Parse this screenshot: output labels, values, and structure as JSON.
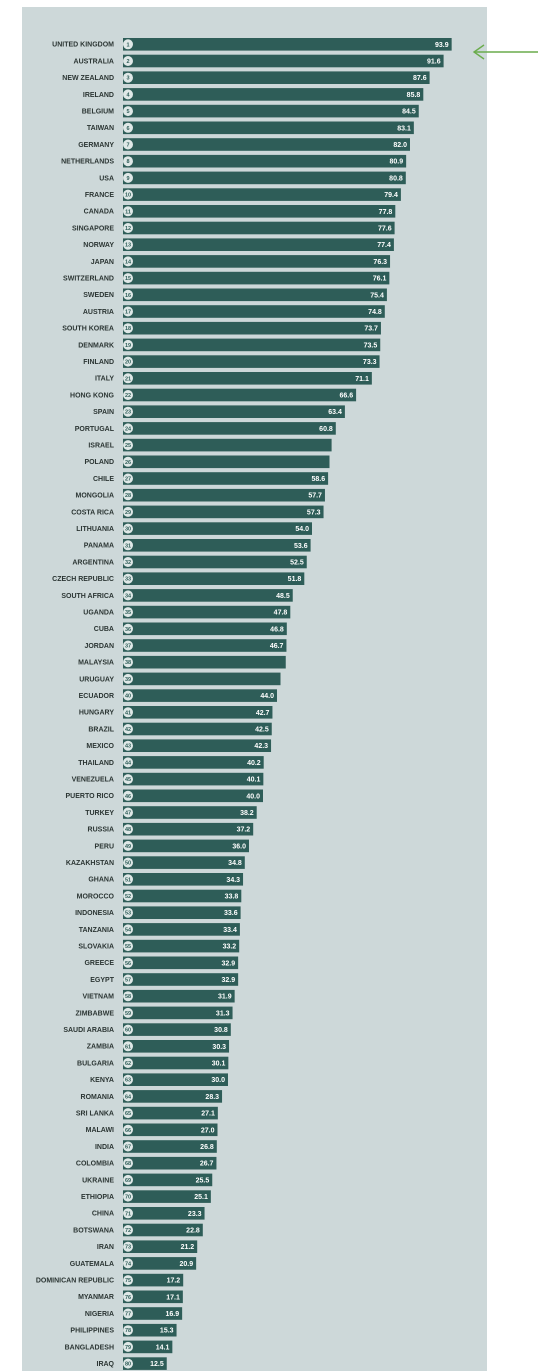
{
  "chart_data": {
    "type": "bar",
    "orientation": "horizontal",
    "highlighted_category": "UNITED KINGDOM",
    "colors": {
      "panel": "#cdd8d9",
      "bar": "#2e5d58",
      "rank_badge": "#dfe8e7",
      "text": "#2b3533",
      "arrow": "#6aac4c"
    },
    "categories": [
      "UNITED KINGDOM",
      "AUSTRALIA",
      "NEW ZEALAND",
      "IRELAND",
      "BELGIUM",
      "TAIWAN",
      "GERMANY",
      "NETHERLANDS",
      "USA",
      "FRANCE",
      "CANADA",
      "SINGAPORE",
      "NORWAY",
      "JAPAN",
      "SWITZERLAND",
      "SWEDEN",
      "AUSTRIA",
      "SOUTH KOREA",
      "DENMARK",
      "FINLAND",
      "ITALY",
      "HONG KONG",
      "SPAIN",
      "PORTUGAL",
      "ISRAEL",
      "POLAND",
      "CHILE",
      "MONGOLIA",
      "COSTA RICA",
      "LITHUANIA",
      "PANAMA",
      "ARGENTINA",
      "CZECH REPUBLIC",
      "SOUTH AFRICA",
      "UGANDA",
      "CUBA",
      "JORDAN",
      "MALAYSIA",
      "URUGUAY",
      "ECUADOR",
      "HUNGARY",
      "BRAZIL",
      "MEXICO",
      "THAILAND",
      "VENEZUELA",
      "PUERTO RICO",
      "TURKEY",
      "RUSSIA",
      "PERU",
      "KAZAKHSTAN",
      "GHANA",
      "MOROCCO",
      "INDONESIA",
      "TANZANIA",
      "SLOVAKIA",
      "GREECE",
      "EGYPT",
      "VIETNAM",
      "ZIMBABWE",
      "SAUDI ARABIA",
      "ZAMBIA",
      "BULGARIA",
      "KENYA",
      "ROMANIA",
      "SRI LANKA",
      "MALAWI",
      "INDIA",
      "COLOMBIA",
      "UKRAINE",
      "ETHIOPIA",
      "CHINA",
      "BOTSWANA",
      "IRAN",
      "GUATEMALA",
      "DOMINICAN REPUBLIC",
      "MYANMAR",
      "NIGERIA",
      "PHILIPPINES",
      "BANGLADESH",
      "IRAQ"
    ],
    "ranks": [
      "1",
      "2",
      "3",
      "4",
      "5",
      "6",
      "7",
      "8",
      "9",
      "10",
      "11",
      "12",
      "13",
      "14",
      "15",
      "16",
      "17",
      "18",
      "19",
      "20",
      "21",
      "22",
      "23",
      "24",
      "25",
      "26",
      "27",
      "28",
      "29",
      "30",
      "31",
      "32",
      "33",
      "34",
      "35",
      "36",
      "37",
      "38",
      "39",
      "40",
      "41",
      "42",
      "43",
      "44",
      "45",
      "46",
      "47",
      "48",
      "49",
      "50",
      "51",
      "52",
      "53",
      "54",
      "55",
      "56",
      "57",
      "58",
      "59",
      "60",
      "61",
      "62",
      "63",
      "64",
      "65",
      "66",
      "67",
      "68",
      "69",
      "70",
      "71",
      "72",
      "73",
      "74",
      "75",
      "76",
      "77",
      "78",
      "79",
      "80"
    ],
    "values": [
      93.9,
      91.6,
      87.6,
      85.8,
      84.5,
      83.1,
      82.0,
      80.9,
      80.8,
      79.4,
      77.8,
      77.6,
      77.4,
      76.3,
      76.1,
      75.4,
      74.8,
      73.7,
      73.5,
      73.3,
      71.1,
      66.6,
      63.4,
      60.8,
      59.6,
      59.0,
      58.6,
      57.7,
      57.3,
      54.0,
      53.6,
      52.5,
      51.8,
      48.5,
      47.8,
      46.8,
      46.7,
      46.5,
      45.0,
      44.0,
      42.7,
      42.5,
      42.3,
      40.2,
      40.1,
      40.0,
      38.2,
      37.2,
      36.0,
      34.8,
      34.3,
      33.8,
      33.6,
      33.4,
      33.2,
      32.9,
      32.9,
      31.9,
      31.3,
      30.8,
      30.3,
      30.1,
      30.0,
      28.3,
      27.1,
      27.0,
      26.8,
      26.7,
      25.5,
      25.1,
      23.3,
      22.8,
      21.2,
      20.9,
      17.2,
      17.1,
      16.9,
      15.3,
      14.1,
      12.5
    ],
    "value_labels": [
      "93.9",
      "91.6",
      "87.6",
      "85.8",
      "84.5",
      "83.1",
      "82.0",
      "80.9",
      "80.8",
      "79.4",
      "77.8",
      "77.6",
      "77.4",
      "76.3",
      "76.1",
      "75.4",
      "74.8",
      "73.7",
      "73.5",
      "73.3",
      "71.1",
      "66.6",
      "63.4",
      "60.8",
      "",
      "",
      "58.6",
      "57.7",
      "57.3",
      "54.0",
      "53.6",
      "52.5",
      "51.8",
      "48.5",
      "47.8",
      "46.8",
      "46.7",
      "",
      "",
      "44.0",
      "42.7",
      "42.5",
      "42.3",
      "40.2",
      "40.1",
      "40.0",
      "38.2",
      "37.2",
      "36.0",
      "34.8",
      "34.3",
      "33.8",
      "33.6",
      "33.4",
      "33.2",
      "32.9",
      "32.9",
      "31.9",
      "31.3",
      "30.8",
      "30.3",
      "30.1",
      "30.0",
      "28.3",
      "27.1",
      "27.0",
      "26.8",
      "26.7",
      "25.5",
      "25.1",
      "23.3",
      "22.8",
      "21.2",
      "20.9",
      "17.2",
      "17.1",
      "16.9",
      "15.3",
      "14.1",
      "12.5"
    ],
    "xlim": [
      0,
      100
    ]
  }
}
